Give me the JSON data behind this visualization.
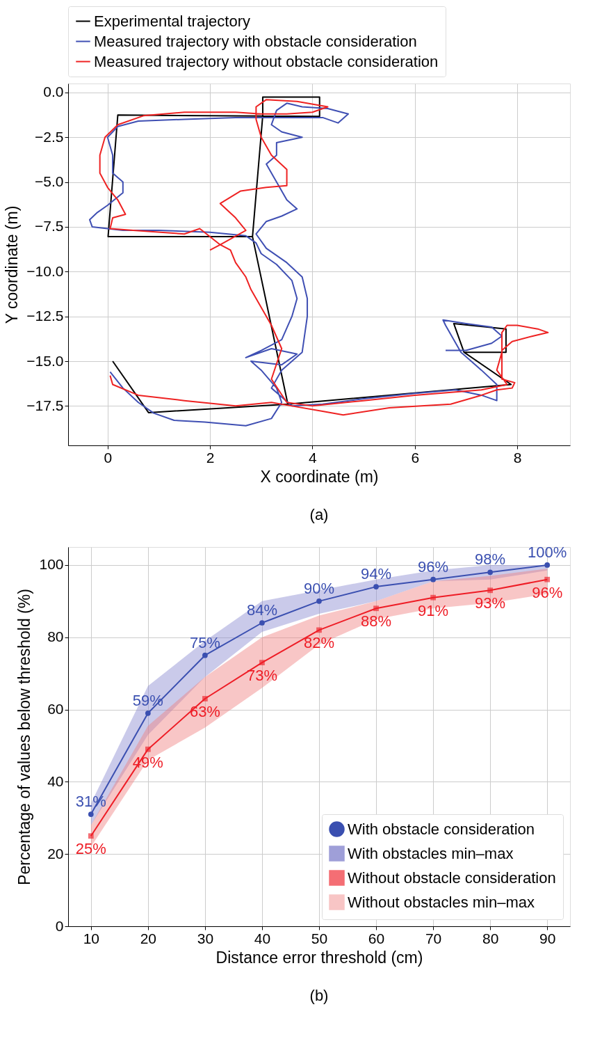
{
  "chart_data": [
    {
      "type": "line",
      "xlabel": "X coordinate (m)",
      "ylabel": "Y coordinate (m)",
      "annotations": [
        "(a)"
      ],
      "xlim": [
        -0.77,
        9.03
      ],
      "xticks": [
        0,
        2,
        4,
        6,
        8
      ],
      "ylim": [
        -19.7,
        0.5
      ],
      "yticks": [
        {
          "value": 0,
          "label": "0.0"
        },
        -2.5,
        {
          "value": -5,
          "label": "−5.0"
        },
        -7.5,
        {
          "value": -10,
          "label": "−10.0"
        },
        -12.5,
        {
          "value": -15,
          "label": "−15.0"
        },
        -17.5
      ],
      "grid": true,
      "legend": "top",
      "line_style": "solid",
      "series": [
        {
          "name": "Experimental trajectory",
          "color": "#000000",
          "x": [
            0.1,
            0.8,
            3.52,
            2.83,
            0.01,
            0.2,
            4.14,
            4.14,
            3.03,
            3.03,
            2.83,
            3.52,
            7.88,
            6.96,
            6.76,
            7.78,
            7.78,
            6.96
          ],
          "values": [
            -15.0,
            -17.87,
            -17.4,
            -8.05,
            -8.05,
            -1.26,
            -1.34,
            -0.26,
            -0.26,
            -1.3,
            -8.05,
            -17.4,
            -16.3,
            -14.5,
            -12.9,
            -13.2,
            -14.5,
            -14.5
          ]
        },
        {
          "name": "Measured trajectory with obstacle consideration",
          "color": "#3f4fb3",
          "x": [
            0.05,
            0.3,
            0.6,
            0.9,
            1.3,
            1.9,
            2.7,
            3.2,
            3.4,
            3.3,
            3.0,
            2.8,
            3.4,
            3.7,
            3.2,
            2.7,
            3.0,
            3.4,
            3.6,
            3.7,
            3.6,
            3.3,
            3.0,
            2.9,
            2.7,
            2.0,
            1.0,
            0.3,
            -0.3,
            -0.35,
            -0.2,
            0.0,
            0.3,
            0.3,
            0.1,
            0.1,
            0.0,
            0.2,
            0.6,
            1.5,
            2.5,
            3.3,
            4.2,
            4.5,
            4.7,
            4.3,
            3.8,
            3.5,
            3.3,
            3.2,
            3.4,
            3.8,
            3.3,
            3.3,
            3.1,
            3.3,
            3.5,
            3.7,
            3.4,
            3.1,
            2.9,
            3.1,
            3.5,
            3.8,
            3.9,
            3.9,
            3.8,
            3.4,
            3.2,
            3.4,
            3.6,
            4.2,
            5.0,
            6.0,
            6.8,
            7.3,
            7.6,
            7.6,
            7.3,
            7.1,
            6.9,
            6.6,
            6.55,
            7.0,
            7.5,
            7.7,
            7.5,
            7.0,
            6.6
          ],
          "values": [
            -15.6,
            -16.5,
            -17.3,
            -17.9,
            -18.3,
            -18.4,
            -18.6,
            -18.2,
            -17.3,
            -16.5,
            -15.5,
            -15.0,
            -15.2,
            -14.6,
            -14.3,
            -14.8,
            -14.4,
            -13.8,
            -12.5,
            -11.5,
            -10.5,
            -9.6,
            -9.0,
            -8.4,
            -8.0,
            -7.8,
            -7.7,
            -7.7,
            -7.5,
            -7.1,
            -6.7,
            -6.3,
            -5.6,
            -5.0,
            -4.5,
            -3.5,
            -2.5,
            -1.9,
            -1.6,
            -1.5,
            -1.4,
            -1.4,
            -1.4,
            -1.7,
            -1.2,
            -0.9,
            -0.8,
            -0.6,
            -1.0,
            -1.8,
            -2.2,
            -2.5,
            -2.8,
            -3.5,
            -4.0,
            -5.0,
            -6.0,
            -6.5,
            -6.9,
            -7.2,
            -7.9,
            -8.7,
            -9.5,
            -10.3,
            -11.5,
            -12.5,
            -14.5,
            -15.5,
            -16.5,
            -17.0,
            -17.5,
            -17.4,
            -17.1,
            -16.8,
            -16.6,
            -16.9,
            -17.2,
            -16.3,
            -15.5,
            -15.0,
            -14.5,
            -13.0,
            -12.7,
            -12.9,
            -13.1,
            -13.6,
            -14.0,
            -14.4,
            -14.4
          ]
        },
        {
          "name": "Measured trajectory without obstacle consideration",
          "color": "#ee2222",
          "x": [
            0.05,
            0.1,
            0.6,
            1.5,
            2.5,
            3.2,
            3.6,
            4.2,
            4.6,
            5.5,
            6.7,
            7.3,
            7.6,
            7.9,
            7.95,
            7.7,
            7.7,
            7.7,
            7.9,
            8.3,
            8.6,
            8.4,
            8.0,
            7.8,
            7.7,
            7.7,
            7.6,
            7.8,
            7.3,
            6.0,
            5.0,
            4.0,
            3.5,
            3.2,
            3.4,
            3.2,
            3.0,
            2.8,
            2.7,
            2.5,
            2.4,
            2.2,
            1.8,
            1.5,
            0.5,
            0.05,
            0.1,
            0.35,
            0.2,
            0.0,
            -0.15,
            -0.15,
            -0.05,
            0.2,
            0.7,
            1.5,
            2.5,
            3.0,
            3.5,
            4.0,
            4.3,
            3.7,
            3.1,
            2.9,
            2.9,
            3.0,
            3.2,
            3.5,
            3.5,
            3.1,
            2.6,
            2.2,
            2.5,
            2.7,
            2.2,
            2.0
          ],
          "values": [
            -15.8,
            -16.3,
            -16.9,
            -17.2,
            -17.5,
            -17.3,
            -17.5,
            -17.8,
            -18.0,
            -17.6,
            -17.4,
            -16.9,
            -16.6,
            -16.5,
            -16.2,
            -16.0,
            -15.2,
            -14.4,
            -13.9,
            -13.6,
            -13.4,
            -13.2,
            -13.0,
            -13.0,
            -13.4,
            -14.5,
            -15.5,
            -16.3,
            -16.6,
            -16.9,
            -17.2,
            -17.5,
            -17.3,
            -16.0,
            -14.3,
            -13.0,
            -12.0,
            -11.0,
            -10.3,
            -9.5,
            -8.8,
            -8.5,
            -7.6,
            -7.9,
            -7.7,
            -7.6,
            -7.0,
            -6.8,
            -6.0,
            -5.3,
            -4.5,
            -3.5,
            -2.5,
            -1.8,
            -1.3,
            -1.1,
            -1.1,
            -1.2,
            -1.2,
            -1.1,
            -0.8,
            -0.5,
            -0.4,
            -0.8,
            -1.5,
            -2.5,
            -3.5,
            -4.3,
            -5.2,
            -5.3,
            -5.5,
            -6.2,
            -7.0,
            -7.7,
            -8.5,
            -8.8
          ]
        }
      ]
    },
    {
      "type": "line",
      "xlabel": "Distance error threshold (cm)",
      "ylabel": "Percentage of values below threshold (%)",
      "annotations": [
        "(b)"
      ],
      "x": [
        10,
        20,
        30,
        40,
        50,
        60,
        70,
        80,
        90
      ],
      "xlim": [
        6,
        94
      ],
      "xticks": [
        10,
        20,
        30,
        40,
        50,
        60,
        70,
        80,
        90
      ],
      "ylim": [
        0,
        105
      ],
      "yticks": [
        0,
        20,
        40,
        60,
        80,
        100
      ],
      "grid": true,
      "legend": "bottom right",
      "series": [
        {
          "name": "With obstacle consideration",
          "color": "#3a4fb0",
          "marker": "circle",
          "values": [
            31,
            59,
            75,
            84,
            90,
            94,
            96,
            98,
            100
          ],
          "value_labels": [
            "31%",
            "59%",
            "75%",
            "84%",
            "90%",
            "94%",
            "96%",
            "98%",
            "100%"
          ],
          "lower": [
            28,
            53,
            69,
            81.5,
            86.5,
            90,
            95.5,
            96,
            98.5
          ],
          "upper": [
            34,
            66.5,
            79,
            90,
            93,
            96,
            98.5,
            100,
            100
          ]
        },
        {
          "type": "area",
          "name": "With obstacles min–max",
          "color": "#8a8ad0",
          "values": [
            null,
            null,
            null,
            null,
            null,
            null,
            null,
            null,
            null
          ]
        },
        {
          "name": "Without obstacle consideration",
          "color": "#ee1c25",
          "marker": "square",
          "values": [
            25,
            49,
            63,
            73,
            82,
            88,
            91,
            93,
            96
          ],
          "value_labels": [
            "25%",
            "49%",
            "63%",
            "73%",
            "82%",
            "88%",
            "91%",
            "93%",
            "96%"
          ],
          "lower": [
            22,
            46,
            55,
            66,
            78,
            85,
            88,
            89.5,
            92
          ],
          "upper": [
            28,
            55.5,
            69,
            80,
            86,
            90,
            95.5,
            97,
            99
          ]
        },
        {
          "type": "area",
          "name": "Without obstacles min–max",
          "color": "#f08080",
          "values": [
            null,
            null,
            null,
            null,
            null,
            null,
            null,
            null,
            null
          ]
        }
      ]
    }
  ]
}
